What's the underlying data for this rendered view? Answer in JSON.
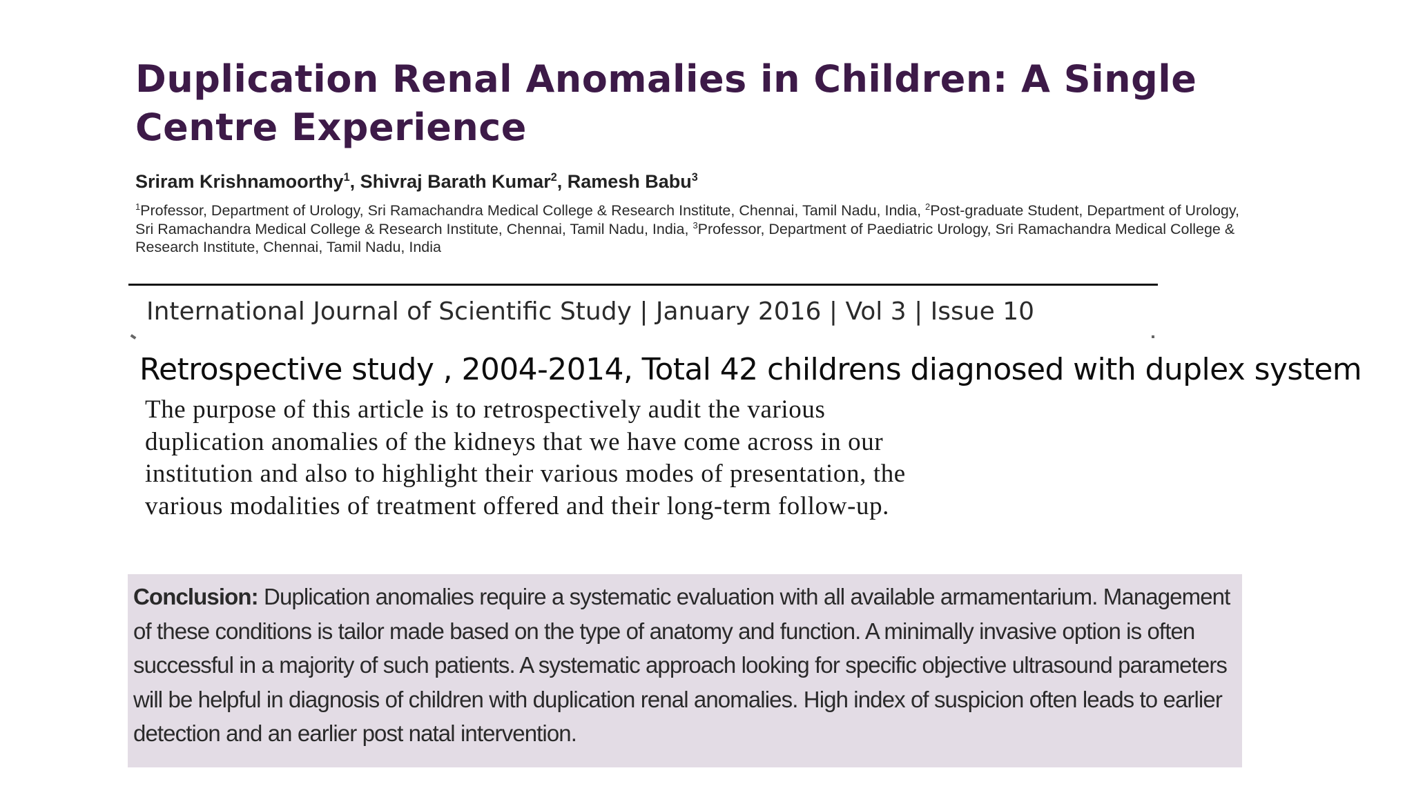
{
  "paper": {
    "title": "Duplication Renal Anomalies in Children: A Single Centre Experience",
    "authors": [
      {
        "name": "Sriram Krishnamoorthy",
        "mark": "1"
      },
      {
        "name": "Shivraj Barath Kumar",
        "mark": "2"
      },
      {
        "name": "Ramesh Babu",
        "mark": "3"
      }
    ],
    "affiliations": [
      {
        "mark": "1",
        "text": "Professor, Department of Urology, Sri Ramachandra Medical College & Research Institute, Chennai, Tamil Nadu, India, "
      },
      {
        "mark": "2",
        "text": "Post-graduate Student, Department of Urology, Sri Ramachandra Medical College & Research Institute, Chennai, Tamil Nadu, India, "
      },
      {
        "mark": "3",
        "text": "Professor, Department of Paediatric Urology, Sri Ramachandra Medical College & Research Institute, Chennai, Tamil Nadu, India"
      }
    ],
    "journal": "International Journal of Scientific Study | January 2016 | Vol 3 | Issue 10"
  },
  "slide": {
    "note": "Retrospective study , 2004-2014, Total 42 childrens diagnosed with duplex system",
    "purpose": "The purpose of this article is to retrospectively audit the various duplication anomalies of the kidneys that we have come across in our institution and also to highlight their various modes of presentation, the various modalities of treatment offered and their long-term follow-up.",
    "conclusion_label": "Conclusion:",
    "conclusion_text": " Duplication anomalies require a systematic evaluation with all available armamentarium. Management of these conditions is tailor made based on the type of anatomy and function. A minimally invasive option is often successful in a majority of such patients. A systematic approach looking for specific objective ultrasound parameters will be helpful in diagnosis of children with duplication renal anomalies. High index of suspicion often leads to earlier detection and an earlier post natal intervention."
  },
  "colors": {
    "title": "#3d1a48",
    "conclusion_bg": "#e3dce5"
  }
}
